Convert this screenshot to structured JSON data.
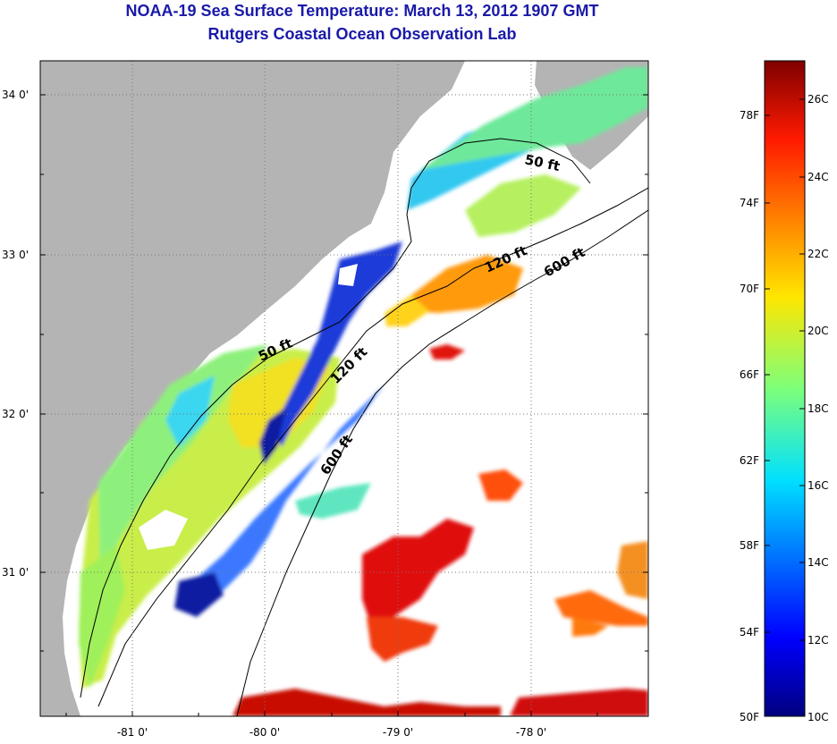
{
  "title": "NOAA-19 Sea Surface Temperature:  March 13, 2012 1907 GMT",
  "subtitle": "Rutgers Coastal Ocean Observation Lab",
  "map": {
    "lat_labels": [
      "34 0'",
      "33 0'",
      "32 0'",
      "31 0'"
    ],
    "lon_labels": [
      "-81 0'",
      "-80 0'",
      "-79 0'",
      "-78 0'"
    ],
    "depth_contours": [
      "50 ft",
      "120 ft",
      "600 ft",
      "50 ft",
      "120 ft",
      "600 ft"
    ],
    "land_color": "#b4b4b4",
    "no_data_color": "#ffffff"
  },
  "colorbar": {
    "fahrenheit_labels": [
      "78F",
      "74F",
      "70F",
      "66F",
      "62F",
      "58F",
      "54F",
      "50F"
    ],
    "celsius_labels": [
      "26C",
      "24C",
      "22C",
      "20C",
      "18C",
      "16C",
      "14C",
      "12C",
      "10C"
    ],
    "min_c": 10,
    "max_c": 27,
    "colormap": "jet"
  }
}
